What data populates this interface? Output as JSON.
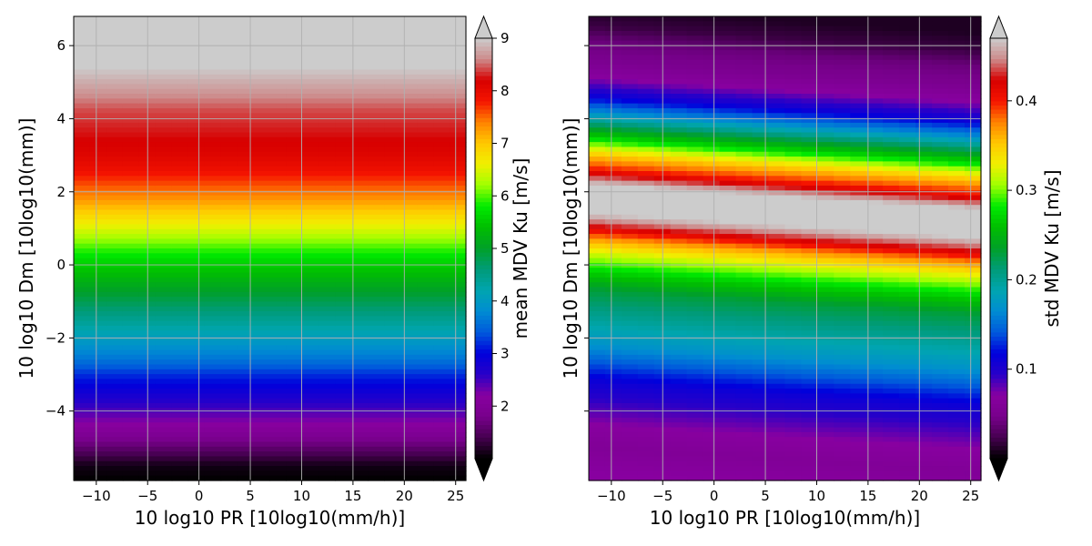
{
  "chart_data": [
    {
      "type": "heatmap",
      "xlabel": "10 log10 PR [10log10(mm/h)]",
      "ylabel": "10 log10 Dm [10log10(mm)]",
      "xlim": [
        -12.2,
        26.0
      ],
      "ylim": [
        -5.9,
        6.8
      ],
      "x_ticks": [
        -10,
        -5,
        0,
        5,
        10,
        15,
        20,
        25
      ],
      "y_ticks": [
        -4,
        -2,
        0,
        2,
        4,
        6
      ],
      "y_tick_labels_shown": true,
      "grid": true,
      "colorbar": {
        "label": "mean MDV Ku [m/s]",
        "vmin": 1.0,
        "vmax": 9.0,
        "ticks": [
          2,
          3,
          4,
          5,
          6,
          7,
          8,
          9
        ],
        "extend": "both"
      },
      "profile": {
        "y": [
          -5.9,
          -5.5,
          -5.0,
          -4.6,
          -4.2,
          -3.8,
          -3.4,
          -3.0,
          -2.6,
          -2.2,
          -1.8,
          -1.4,
          -1.0,
          -0.6,
          -0.2,
          0.2,
          0.6,
          1.0,
          1.4,
          1.8,
          2.2,
          2.6,
          3.0,
          3.4,
          3.8,
          4.2,
          4.6,
          5.0,
          5.4,
          5.8,
          6.2,
          6.8
        ],
        "values": [
          1.0,
          1.1,
          1.6,
          2.0,
          2.3,
          2.6,
          2.9,
          3.2,
          3.6,
          3.9,
          4.2,
          4.5,
          4.8,
          5.1,
          5.4,
          5.7,
          6.1,
          6.5,
          6.9,
          7.3,
          7.6,
          7.9,
          8.1,
          8.2,
          8.3,
          8.4,
          8.6,
          8.8,
          9.0,
          9.3,
          9.6,
          10.0
        ]
      },
      "slope_per_x": 0.0
    },
    {
      "type": "heatmap",
      "xlabel": "10 log10 PR [10log10(mm/h)]",
      "ylabel": "10 log10 Dm [10log10(mm)]",
      "xlim": [
        -12.2,
        26.0
      ],
      "ylim": [
        -5.9,
        6.8
      ],
      "x_ticks": [
        -10,
        -5,
        0,
        5,
        10,
        15,
        20,
        25
      ],
      "y_ticks": [
        -4,
        -2,
        0,
        2,
        4,
        6
      ],
      "y_tick_labels_shown": false,
      "grid": true,
      "colorbar": {
        "label": "std MDV Ku [m/s]",
        "vmin": 0.0,
        "vmax": 0.47,
        "ticks": [
          0.1,
          0.2,
          0.3,
          0.4
        ],
        "extend": "both"
      },
      "profile": {
        "y": [
          -5.9,
          -5.2,
          -4.6,
          -4.0,
          -3.4,
          -2.9,
          -2.4,
          -1.9,
          -1.4,
          -0.9,
          -0.4,
          0.1,
          0.5,
          0.8,
          1.1,
          1.4,
          1.8,
          2.1,
          2.4,
          2.8,
          3.2,
          3.6,
          4.0,
          4.4,
          4.9,
          5.4,
          5.9,
          6.3,
          6.8
        ],
        "values": [
          0.07,
          0.06,
          0.07,
          0.09,
          0.11,
          0.14,
          0.17,
          0.19,
          0.21,
          0.23,
          0.27,
          0.32,
          0.37,
          0.42,
          0.46,
          0.49,
          0.5,
          0.45,
          0.4,
          0.35,
          0.28,
          0.22,
          0.16,
          0.11,
          0.07,
          0.05,
          0.04,
          0.02,
          0.01
        ]
      },
      "slope_per_x": -0.018
    }
  ]
}
